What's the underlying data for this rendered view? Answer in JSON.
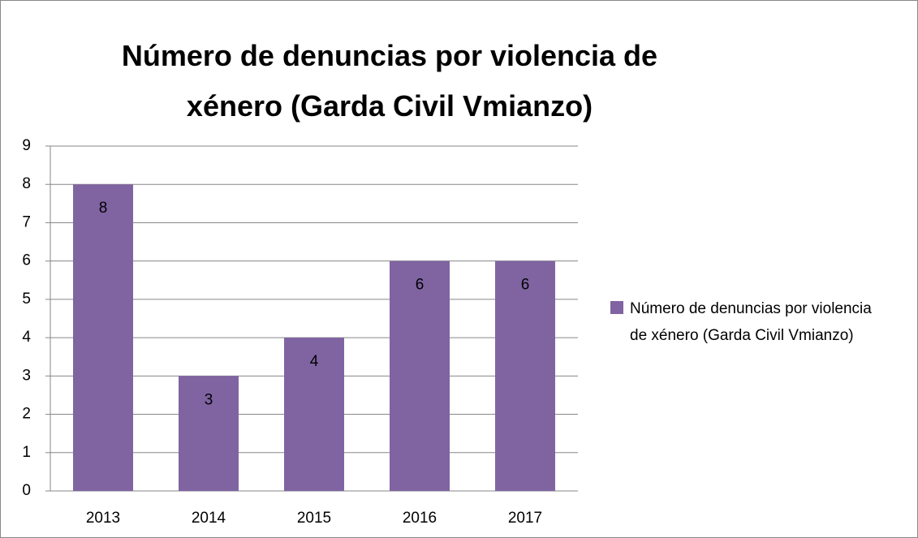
{
  "chart_data": {
    "type": "bar",
    "title": "Número de denuncias por violencia de xénero (Garda Civil Vmianzo)",
    "categories": [
      "2013",
      "2014",
      "2015",
      "2016",
      "2017"
    ],
    "series": [
      {
        "name": "Número de denuncias por violencia de xénero (Garda Civil Vmianzo)",
        "color": "#8064a2",
        "values": [
          8,
          3,
          4,
          6,
          6
        ]
      }
    ],
    "ylim": [
      0,
      9
    ],
    "yticks": [
      0,
      1,
      2,
      3,
      4,
      5,
      6,
      7,
      8,
      9
    ],
    "grid": true,
    "legend": "right"
  }
}
